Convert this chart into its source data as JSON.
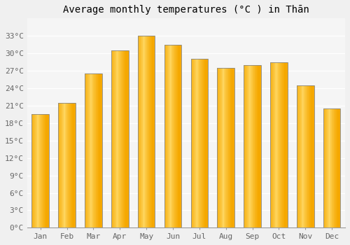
{
  "title": "Average monthly temperatures (°C ) in Thān",
  "months": [
    "Jan",
    "Feb",
    "Mar",
    "Apr",
    "May",
    "Jun",
    "Jul",
    "Aug",
    "Sep",
    "Oct",
    "Nov",
    "Dec"
  ],
  "values": [
    19.5,
    21.5,
    26.5,
    30.5,
    33.0,
    31.5,
    29.0,
    27.5,
    28.0,
    28.5,
    24.5,
    20.5
  ],
  "bar_color_dark": "#F5A800",
  "bar_color_light": "#FFD966",
  "bar_edge_color": "#888888",
  "ylim": [
    0,
    36
  ],
  "yticks": [
    0,
    3,
    6,
    9,
    12,
    15,
    18,
    21,
    24,
    27,
    30,
    33
  ],
  "background_color": "#f0f0f0",
  "plot_bg_color": "#f5f5f5",
  "grid_color": "#ffffff",
  "title_fontsize": 10,
  "tick_fontsize": 8,
  "bar_width": 0.65
}
